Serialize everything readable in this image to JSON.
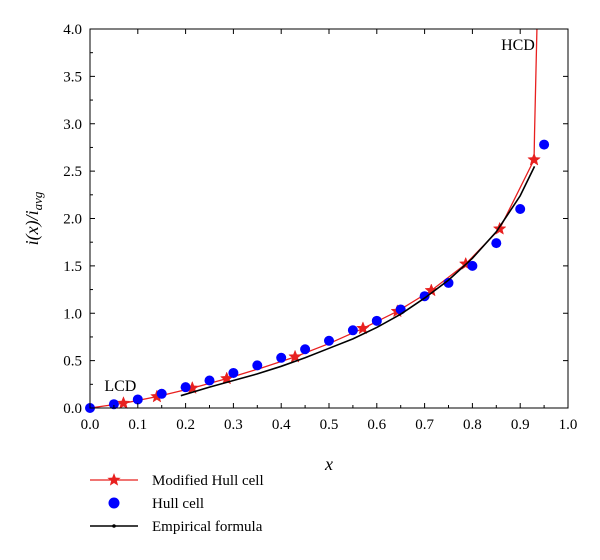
{
  "chart_data": {
    "type": "line",
    "xlabel": "x",
    "ylabel": {
      "main": "i(x)/i",
      "sub": "avg"
    },
    "xlim": [
      0.0,
      1.0
    ],
    "ylim": [
      0.0,
      4.0
    ],
    "x_ticks": [
      "0.0",
      "0.1",
      "0.2",
      "0.3",
      "0.4",
      "0.5",
      "0.6",
      "0.7",
      "0.8",
      "0.9",
      "1.0"
    ],
    "y_ticks": [
      "0.0",
      "0.5",
      "1.0",
      "1.5",
      "2.0",
      "2.5",
      "3.0",
      "3.5",
      "4.0"
    ],
    "annotations": [
      {
        "text": "LCD",
        "x": 0.03,
        "y": 0.18
      },
      {
        "text": "HCD",
        "x": 0.86,
        "y": 3.78
      }
    ],
    "legend_position": "bottom-left, outside",
    "series": [
      {
        "name": "Modified Hull cell",
        "style": "line-star",
        "color": "#e8201f",
        "line": [
          [
            0.0,
            0.0
          ],
          [
            0.07,
            0.05
          ],
          [
            0.14,
            0.12
          ],
          [
            0.214,
            0.21
          ],
          [
            0.286,
            0.31
          ],
          [
            0.357,
            0.42
          ],
          [
            0.429,
            0.54
          ],
          [
            0.5,
            0.68
          ],
          [
            0.571,
            0.84
          ],
          [
            0.643,
            1.02
          ],
          [
            0.714,
            1.24
          ],
          [
            0.786,
            1.52
          ],
          [
            0.857,
            1.89
          ],
          [
            0.929,
            2.62
          ],
          [
            0.93,
            2.9
          ],
          [
            0.935,
            4.0
          ]
        ],
        "markers": [
          [
            0.07,
            0.05
          ],
          [
            0.14,
            0.12
          ],
          [
            0.214,
            0.21
          ],
          [
            0.286,
            0.31
          ],
          [
            0.429,
            0.54
          ],
          [
            0.571,
            0.84
          ],
          [
            0.643,
            1.02
          ],
          [
            0.714,
            1.24
          ],
          [
            0.786,
            1.52
          ],
          [
            0.857,
            1.89
          ],
          [
            0.929,
            2.62
          ]
        ]
      },
      {
        "name": "Hull cell",
        "style": "dots",
        "color": "#0000ff",
        "points": [
          [
            0.0,
            0.0
          ],
          [
            0.05,
            0.04
          ],
          [
            0.1,
            0.09
          ],
          [
            0.15,
            0.15
          ],
          [
            0.2,
            0.22
          ],
          [
            0.25,
            0.29
          ],
          [
            0.3,
            0.37
          ],
          [
            0.35,
            0.45
          ],
          [
            0.4,
            0.53
          ],
          [
            0.45,
            0.62
          ],
          [
            0.5,
            0.71
          ],
          [
            0.55,
            0.82
          ],
          [
            0.6,
            0.92
          ],
          [
            0.65,
            1.04
          ],
          [
            0.7,
            1.18
          ],
          [
            0.75,
            1.32
          ],
          [
            0.8,
            1.5
          ],
          [
            0.85,
            1.74
          ],
          [
            0.9,
            2.1
          ],
          [
            0.95,
            2.78
          ]
        ]
      },
      {
        "name": "Empirical formula",
        "style": "line",
        "color": "#000000",
        "line": [
          [
            0.19,
            0.13
          ],
          [
            0.25,
            0.22
          ],
          [
            0.3,
            0.29
          ],
          [
            0.35,
            0.36
          ],
          [
            0.4,
            0.44
          ],
          [
            0.45,
            0.53
          ],
          [
            0.5,
            0.63
          ],
          [
            0.55,
            0.73
          ],
          [
            0.6,
            0.85
          ],
          [
            0.65,
            0.99
          ],
          [
            0.7,
            1.16
          ],
          [
            0.75,
            1.35
          ],
          [
            0.8,
            1.58
          ],
          [
            0.85,
            1.86
          ],
          [
            0.9,
            2.24
          ],
          [
            0.93,
            2.55
          ]
        ]
      }
    ]
  }
}
